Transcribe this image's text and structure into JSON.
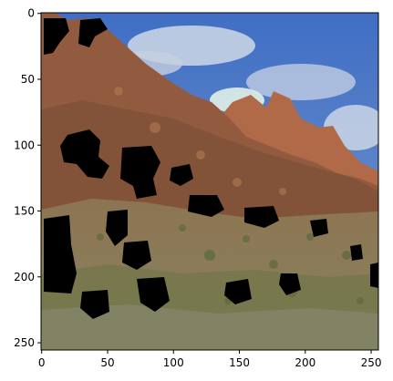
{
  "figure": {
    "type": "image",
    "subject": "Landscape photograph of red sandstone cliffs under a blue sky with scrubby vegetation in the foreground; irregular black masked patches are scattered across the left and middle of the image",
    "colors": {
      "sky": "#4a78c8",
      "cloud": "#d8e0ea",
      "cliff_red": "#9a5a3c",
      "cliff_dark": "#6e4532",
      "slope_khaki": "#8a8058",
      "vegetation": "#6e7446",
      "mask": "#000000"
    }
  },
  "axes": {
    "xticks": [
      "0",
      "50",
      "100",
      "150",
      "200",
      "250"
    ],
    "yticks": [
      "0",
      "50",
      "100",
      "150",
      "200",
      "250"
    ]
  },
  "chart_data": {
    "type": "heatmap",
    "title": "",
    "xlabel": "",
    "ylabel": "",
    "xlim": [
      -0.5,
      255.5
    ],
    "ylim": [
      255.5,
      -0.5
    ],
    "xticks": [
      0,
      50,
      100,
      150,
      200,
      250
    ],
    "yticks": [
      0,
      50,
      100,
      150,
      200,
      250
    ],
    "grid": false
  }
}
